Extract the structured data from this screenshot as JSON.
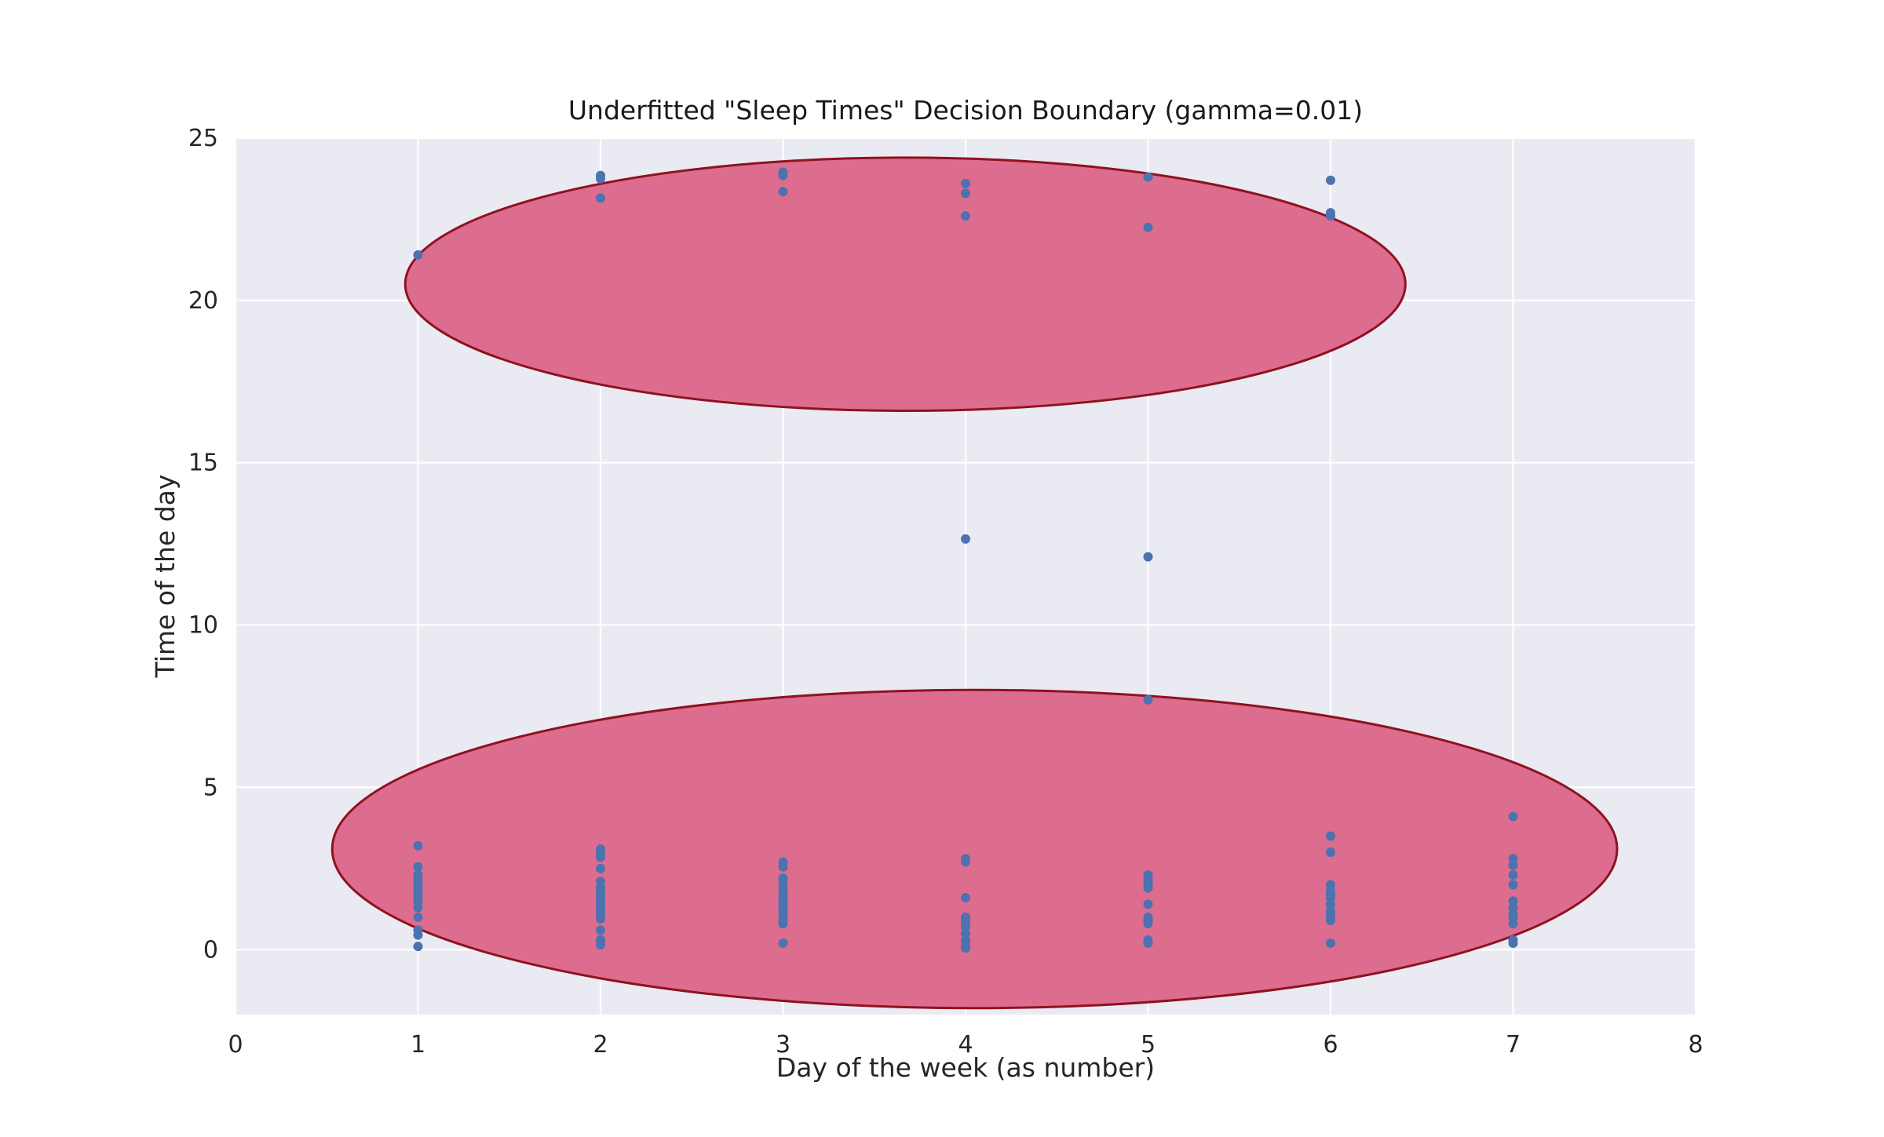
{
  "figure": {
    "background": "#ffffff",
    "axes_background": "#eaeaf2",
    "grid_color": "#ffffff"
  },
  "chart_data": {
    "type": "scatter",
    "title": "Underfitted \"Sleep Times\" Decision Boundary (gamma=0.01)",
    "xlabel": "Day of the week (as number)",
    "ylabel": "Time of the day",
    "xlim": [
      0,
      8
    ],
    "ylim": [
      -2,
      25
    ],
    "xticks": [
      0,
      1,
      2,
      3,
      4,
      5,
      6,
      7,
      8
    ],
    "yticks": [
      0,
      5,
      10,
      15,
      20,
      25
    ],
    "grid": true,
    "legend": "none",
    "point_color": "#4c72b0",
    "point_radius_px": 6,
    "regions": [
      {
        "shape": "ellipse",
        "label": "decision-region-top",
        "cx": 3.67,
        "cy": 20.5,
        "rx": 2.74,
        "ry": 3.9,
        "fill": "#dd6d8e",
        "stroke": "#8f1220",
        "stroke_width": 3
      },
      {
        "shape": "ellipse",
        "label": "decision-region-bottom",
        "cx": 4.05,
        "cy": 3.1,
        "rx": 3.52,
        "ry": 4.9,
        "fill": "#dd6d8e",
        "stroke": "#8f1220",
        "stroke_width": 3
      }
    ],
    "points": [
      [
        1,
        21.4
      ],
      [
        1,
        3.2
      ],
      [
        1,
        2.55
      ],
      [
        1,
        2.3
      ],
      [
        1,
        2.2
      ],
      [
        1,
        2.1
      ],
      [
        1,
        2.0
      ],
      [
        1,
        1.85
      ],
      [
        1,
        1.75
      ],
      [
        1,
        1.6
      ],
      [
        1,
        1.5
      ],
      [
        1,
        1.3
      ],
      [
        1,
        1.0
      ],
      [
        1,
        0.6
      ],
      [
        1,
        0.45
      ],
      [
        1,
        0.1
      ],
      [
        2,
        23.85
      ],
      [
        2,
        23.75
      ],
      [
        2,
        23.15
      ],
      [
        2,
        3.1
      ],
      [
        2,
        3.0
      ],
      [
        2,
        2.85
      ],
      [
        2,
        2.5
      ],
      [
        2,
        2.1
      ],
      [
        2,
        1.9
      ],
      [
        2,
        1.75
      ],
      [
        2,
        1.65
      ],
      [
        2,
        1.55
      ],
      [
        2,
        1.45
      ],
      [
        2,
        1.3
      ],
      [
        2,
        1.2
      ],
      [
        2,
        1.1
      ],
      [
        2,
        0.95
      ],
      [
        2,
        0.6
      ],
      [
        2,
        0.3
      ],
      [
        2,
        0.15
      ],
      [
        3,
        23.95
      ],
      [
        3,
        23.85
      ],
      [
        3,
        23.35
      ],
      [
        3,
        2.7
      ],
      [
        3,
        2.55
      ],
      [
        3,
        2.2
      ],
      [
        3,
        2.0
      ],
      [
        3,
        1.85
      ],
      [
        3,
        1.7
      ],
      [
        3,
        1.6
      ],
      [
        3,
        1.5
      ],
      [
        3,
        1.4
      ],
      [
        3,
        1.3
      ],
      [
        3,
        1.2
      ],
      [
        3,
        1.1
      ],
      [
        3,
        1.0
      ],
      [
        3,
        0.9
      ],
      [
        3,
        0.8
      ],
      [
        3,
        0.2
      ],
      [
        4,
        23.6
      ],
      [
        4,
        23.3
      ],
      [
        4,
        22.6
      ],
      [
        4,
        12.65
      ],
      [
        4,
        2.8
      ],
      [
        4,
        2.7
      ],
      [
        4,
        1.6
      ],
      [
        4,
        1.0
      ],
      [
        4,
        0.9
      ],
      [
        4,
        0.8
      ],
      [
        4,
        0.7
      ],
      [
        4,
        0.5
      ],
      [
        4,
        0.3
      ],
      [
        4,
        0.15
      ],
      [
        4,
        0.05
      ],
      [
        5,
        23.8
      ],
      [
        5,
        22.25
      ],
      [
        5,
        12.1
      ],
      [
        5,
        7.7
      ],
      [
        5,
        2.3
      ],
      [
        5,
        2.2
      ],
      [
        5,
        2.1
      ],
      [
        5,
        2.0
      ],
      [
        5,
        1.9
      ],
      [
        5,
        1.4
      ],
      [
        5,
        1.0
      ],
      [
        5,
        0.9
      ],
      [
        5,
        0.8
      ],
      [
        5,
        0.3
      ],
      [
        5,
        0.2
      ],
      [
        6,
        23.7
      ],
      [
        6,
        22.7
      ],
      [
        6,
        22.6
      ],
      [
        6,
        3.5
      ],
      [
        6,
        3.0
      ],
      [
        6,
        2.0
      ],
      [
        6,
        1.8
      ],
      [
        6,
        1.7
      ],
      [
        6,
        1.6
      ],
      [
        6,
        1.4
      ],
      [
        6,
        1.2
      ],
      [
        6,
        1.1
      ],
      [
        6,
        1.0
      ],
      [
        6,
        0.9
      ],
      [
        6,
        0.2
      ],
      [
        7,
        4.1
      ],
      [
        7,
        2.8
      ],
      [
        7,
        2.6
      ],
      [
        7,
        2.3
      ],
      [
        7,
        2.0
      ],
      [
        7,
        1.5
      ],
      [
        7,
        1.3
      ],
      [
        7,
        1.1
      ],
      [
        7,
        1.0
      ],
      [
        7,
        0.8
      ],
      [
        7,
        0.3
      ],
      [
        7,
        0.2
      ]
    ]
  }
}
